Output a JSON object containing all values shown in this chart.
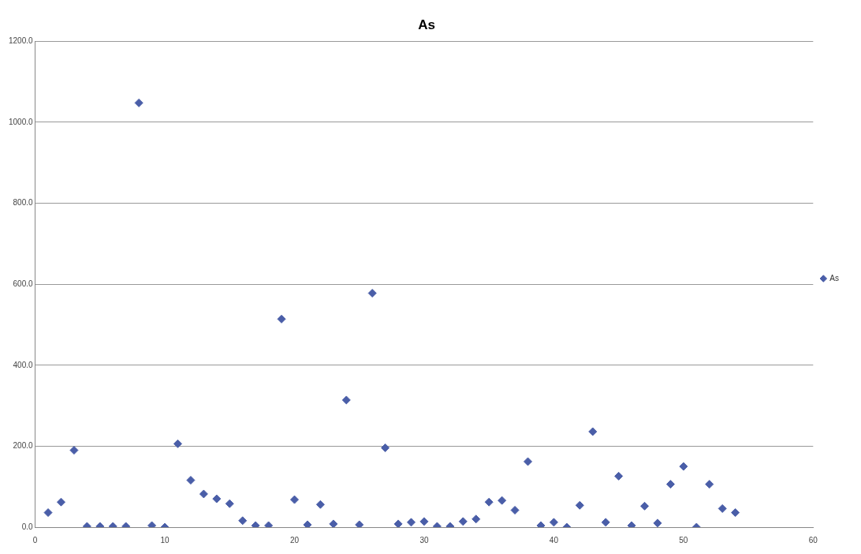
{
  "chart_data": {
    "type": "scatter",
    "title": "As",
    "x": [
      1,
      2,
      3,
      4,
      5,
      6,
      7,
      8,
      9,
      10,
      11,
      12,
      13,
      14,
      15,
      16,
      17,
      18,
      19,
      20,
      21,
      22,
      23,
      24,
      25,
      26,
      27,
      28,
      29,
      30,
      31,
      32,
      33,
      34,
      35,
      36,
      37,
      38,
      39,
      40,
      41,
      42,
      43,
      44,
      45,
      46,
      47,
      48,
      49,
      50,
      51,
      52,
      53,
      54
    ],
    "series": [
      {
        "name": "As",
        "color": "#4a5ea8",
        "values": [
          36,
          62,
          190,
          2,
          2,
          2,
          2,
          1048,
          4,
          0,
          206,
          116,
          82,
          70,
          58,
          16,
          4,
          4,
          514,
          68,
          6,
          56,
          8,
          314,
          6,
          578,
          196,
          8,
          12,
          14,
          2,
          2,
          14,
          20,
          62,
          66,
          42,
          162,
          4,
          12,
          0,
          54,
          236,
          12,
          126,
          4,
          52,
          10,
          106,
          150,
          0,
          106,
          46,
          36
        ]
      }
    ],
    "xlim": [
      0,
      60
    ],
    "xticks": [
      0,
      10,
      20,
      30,
      40,
      50,
      60
    ],
    "ylim": [
      0,
      1200
    ],
    "yticks": [
      {
        "value": 0,
        "label": "0.0"
      },
      {
        "value": 200,
        "label": "200.0"
      },
      {
        "value": 400,
        "label": "400.0"
      },
      {
        "value": 600,
        "label": "600.0"
      },
      {
        "value": 800,
        "label": "800.0"
      },
      {
        "value": 1000,
        "label": "1000.0"
      },
      {
        "value": 1200,
        "label": "1200.0"
      }
    ],
    "grid": "y",
    "legend": "right",
    "marker": "diamond"
  }
}
